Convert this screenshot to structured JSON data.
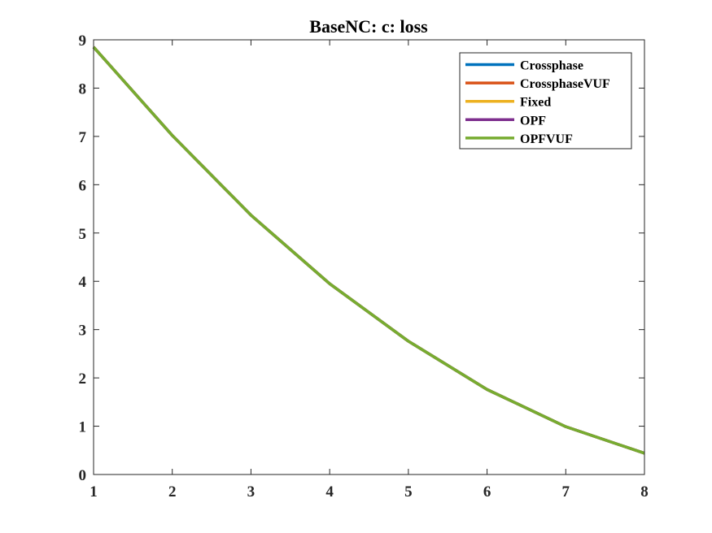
{
  "chart_data": {
    "type": "line",
    "title": "BaseNC: c: loss",
    "xlabel": "",
    "ylabel": "",
    "xlim": [
      1,
      8
    ],
    "ylim": [
      0,
      9
    ],
    "x_ticks": [
      1,
      2,
      3,
      4,
      5,
      6,
      7,
      8
    ],
    "y_ticks": [
      0,
      1,
      2,
      3,
      4,
      5,
      6,
      7,
      8,
      9
    ],
    "grid": false,
    "legend_position": "top-right",
    "x": [
      1,
      2,
      3,
      4,
      5,
      6,
      7,
      8
    ],
    "series": [
      {
        "name": "Crossphase",
        "color": "#0072BD",
        "values": [
          8.85,
          7.02,
          5.37,
          3.95,
          2.76,
          1.76,
          0.99,
          0.44
        ]
      },
      {
        "name": "CrossphaseVUF",
        "color": "#D95319",
        "values": [
          8.85,
          7.02,
          5.37,
          3.95,
          2.76,
          1.76,
          0.99,
          0.44
        ]
      },
      {
        "name": "Fixed",
        "color": "#EDB120",
        "values": [
          8.85,
          7.02,
          5.37,
          3.95,
          2.76,
          1.76,
          0.99,
          0.44
        ]
      },
      {
        "name": "OPF",
        "color": "#7E2F8E",
        "values": [
          8.85,
          7.02,
          5.37,
          3.95,
          2.76,
          1.76,
          0.99,
          0.44
        ]
      },
      {
        "name": "OPFVUF",
        "color": "#77AC30",
        "values": [
          8.85,
          7.02,
          5.37,
          3.95,
          2.76,
          1.76,
          0.99,
          0.44
        ]
      }
    ]
  }
}
